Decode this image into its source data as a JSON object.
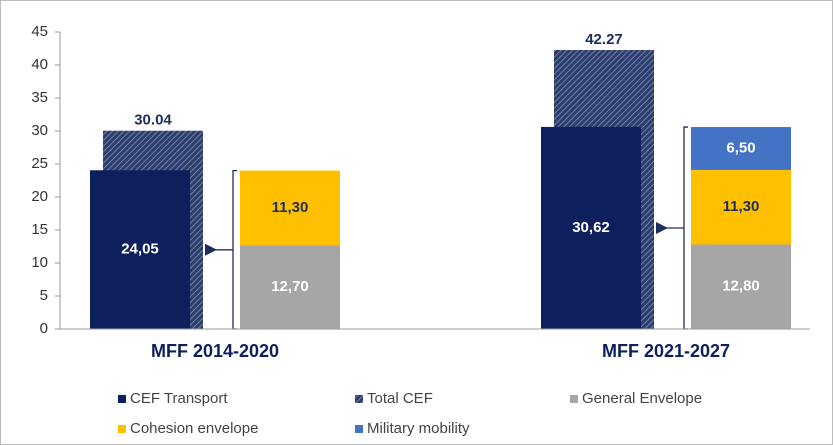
{
  "chart_data": {
    "type": "bar",
    "categories": [
      "MFF 2014-2020",
      "MFF 2021-2027"
    ],
    "series": [
      {
        "name": "CEF Transport",
        "color": "#0d1f5c",
        "values": [
          24.05,
          30.62
        ],
        "value_labels": [
          "24,05",
          "30,62"
        ]
      },
      {
        "name": "Total CEF",
        "color": "#2c3e6e",
        "values": [
          30.04,
          42.27
        ]
      },
      {
        "name": "General Envelope",
        "color": "#a6a6a6",
        "values": [
          12.7,
          12.8
        ],
        "value_labels": [
          "12,70",
          "12,80"
        ]
      },
      {
        "name": "Cohesion envelope",
        "color": "#ffc000",
        "values": [
          11.3,
          11.3
        ],
        "value_labels": [
          "11,30",
          "11,30"
        ]
      },
      {
        "name": "Military mobility",
        "color": "#4472c4",
        "values": [
          null,
          6.5
        ],
        "value_labels": [
          null,
          "6,50"
        ]
      }
    ],
    "ylim": [
      0,
      45
    ],
    "yticks": [
      0,
      5,
      10,
      15,
      20,
      25,
      30,
      35,
      40,
      45
    ]
  }
}
